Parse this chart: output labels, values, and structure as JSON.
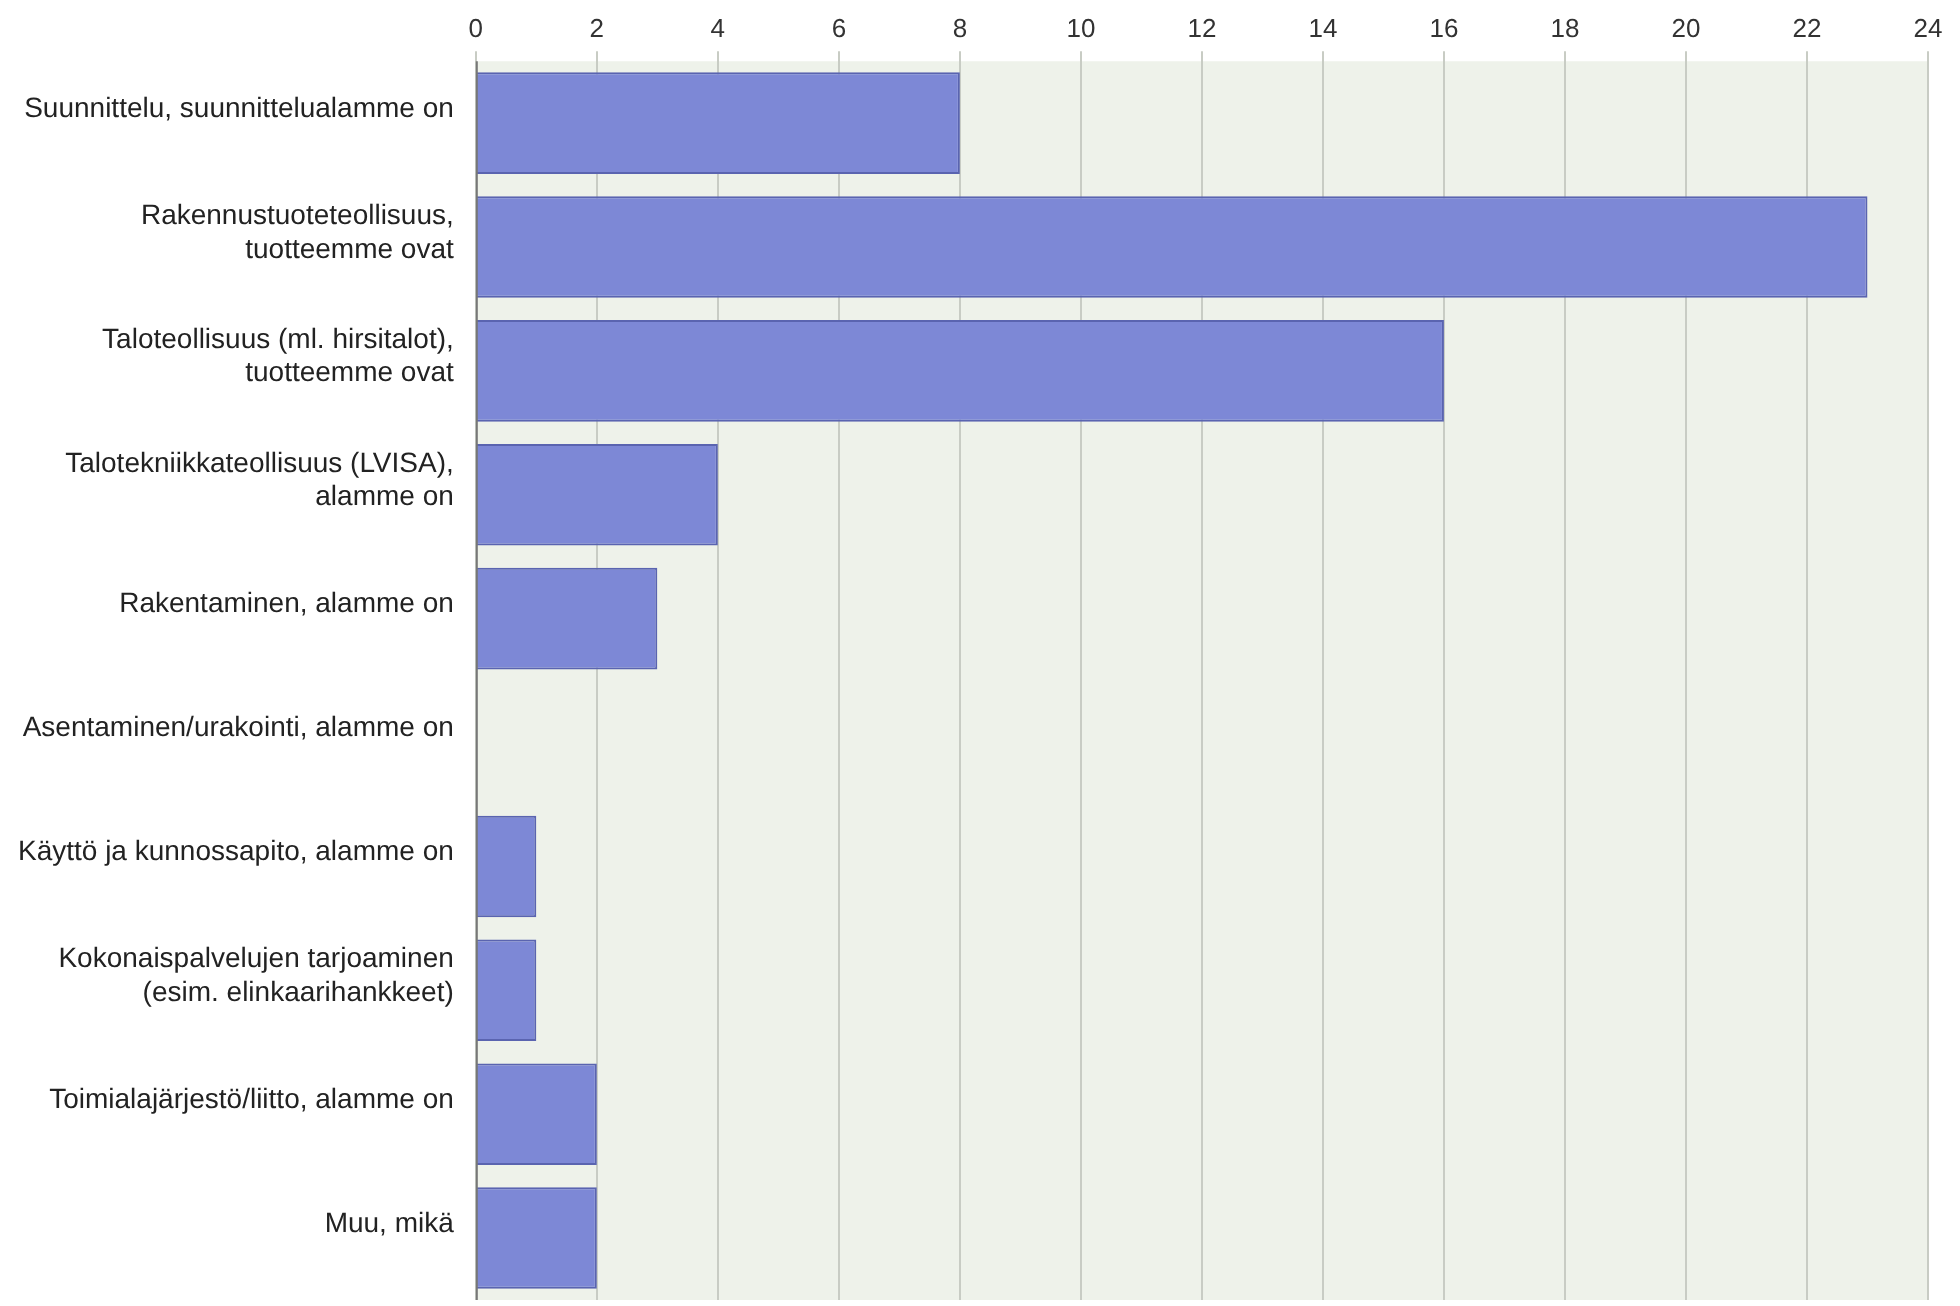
{
  "chart_data": {
    "type": "bar",
    "orientation": "horizontal",
    "categories": [
      "Suunnittelu, suunnittelualamme on",
      "Rakennustuoteteollisuus,\ntuotteemme ovat",
      "Taloteollisuus (ml. hirsitalot),\ntuotteemme ovat",
      "Talotekniikkateollisuus (LVISA),\nalamme on",
      "Rakentaminen, alamme on",
      "Asentaminen/urakointi, alamme on",
      "Käyttö ja kunnossapito, alamme on",
      "Kokonaispalvelujen tarjoaminen\n(esim. elinkaarihankkeet)",
      "Toimialajärjestö/liitto, alamme on",
      "Muu, mikä"
    ],
    "values": [
      8,
      23,
      16,
      4,
      3,
      0,
      1,
      1,
      2,
      2
    ],
    "color": "#7d88d6",
    "xlim": [
      0,
      24
    ],
    "xticks": [
      0,
      2,
      4,
      6,
      8,
      10,
      12,
      14,
      16,
      18,
      20,
      22,
      24
    ],
    "grid": "x",
    "legend": false
  }
}
